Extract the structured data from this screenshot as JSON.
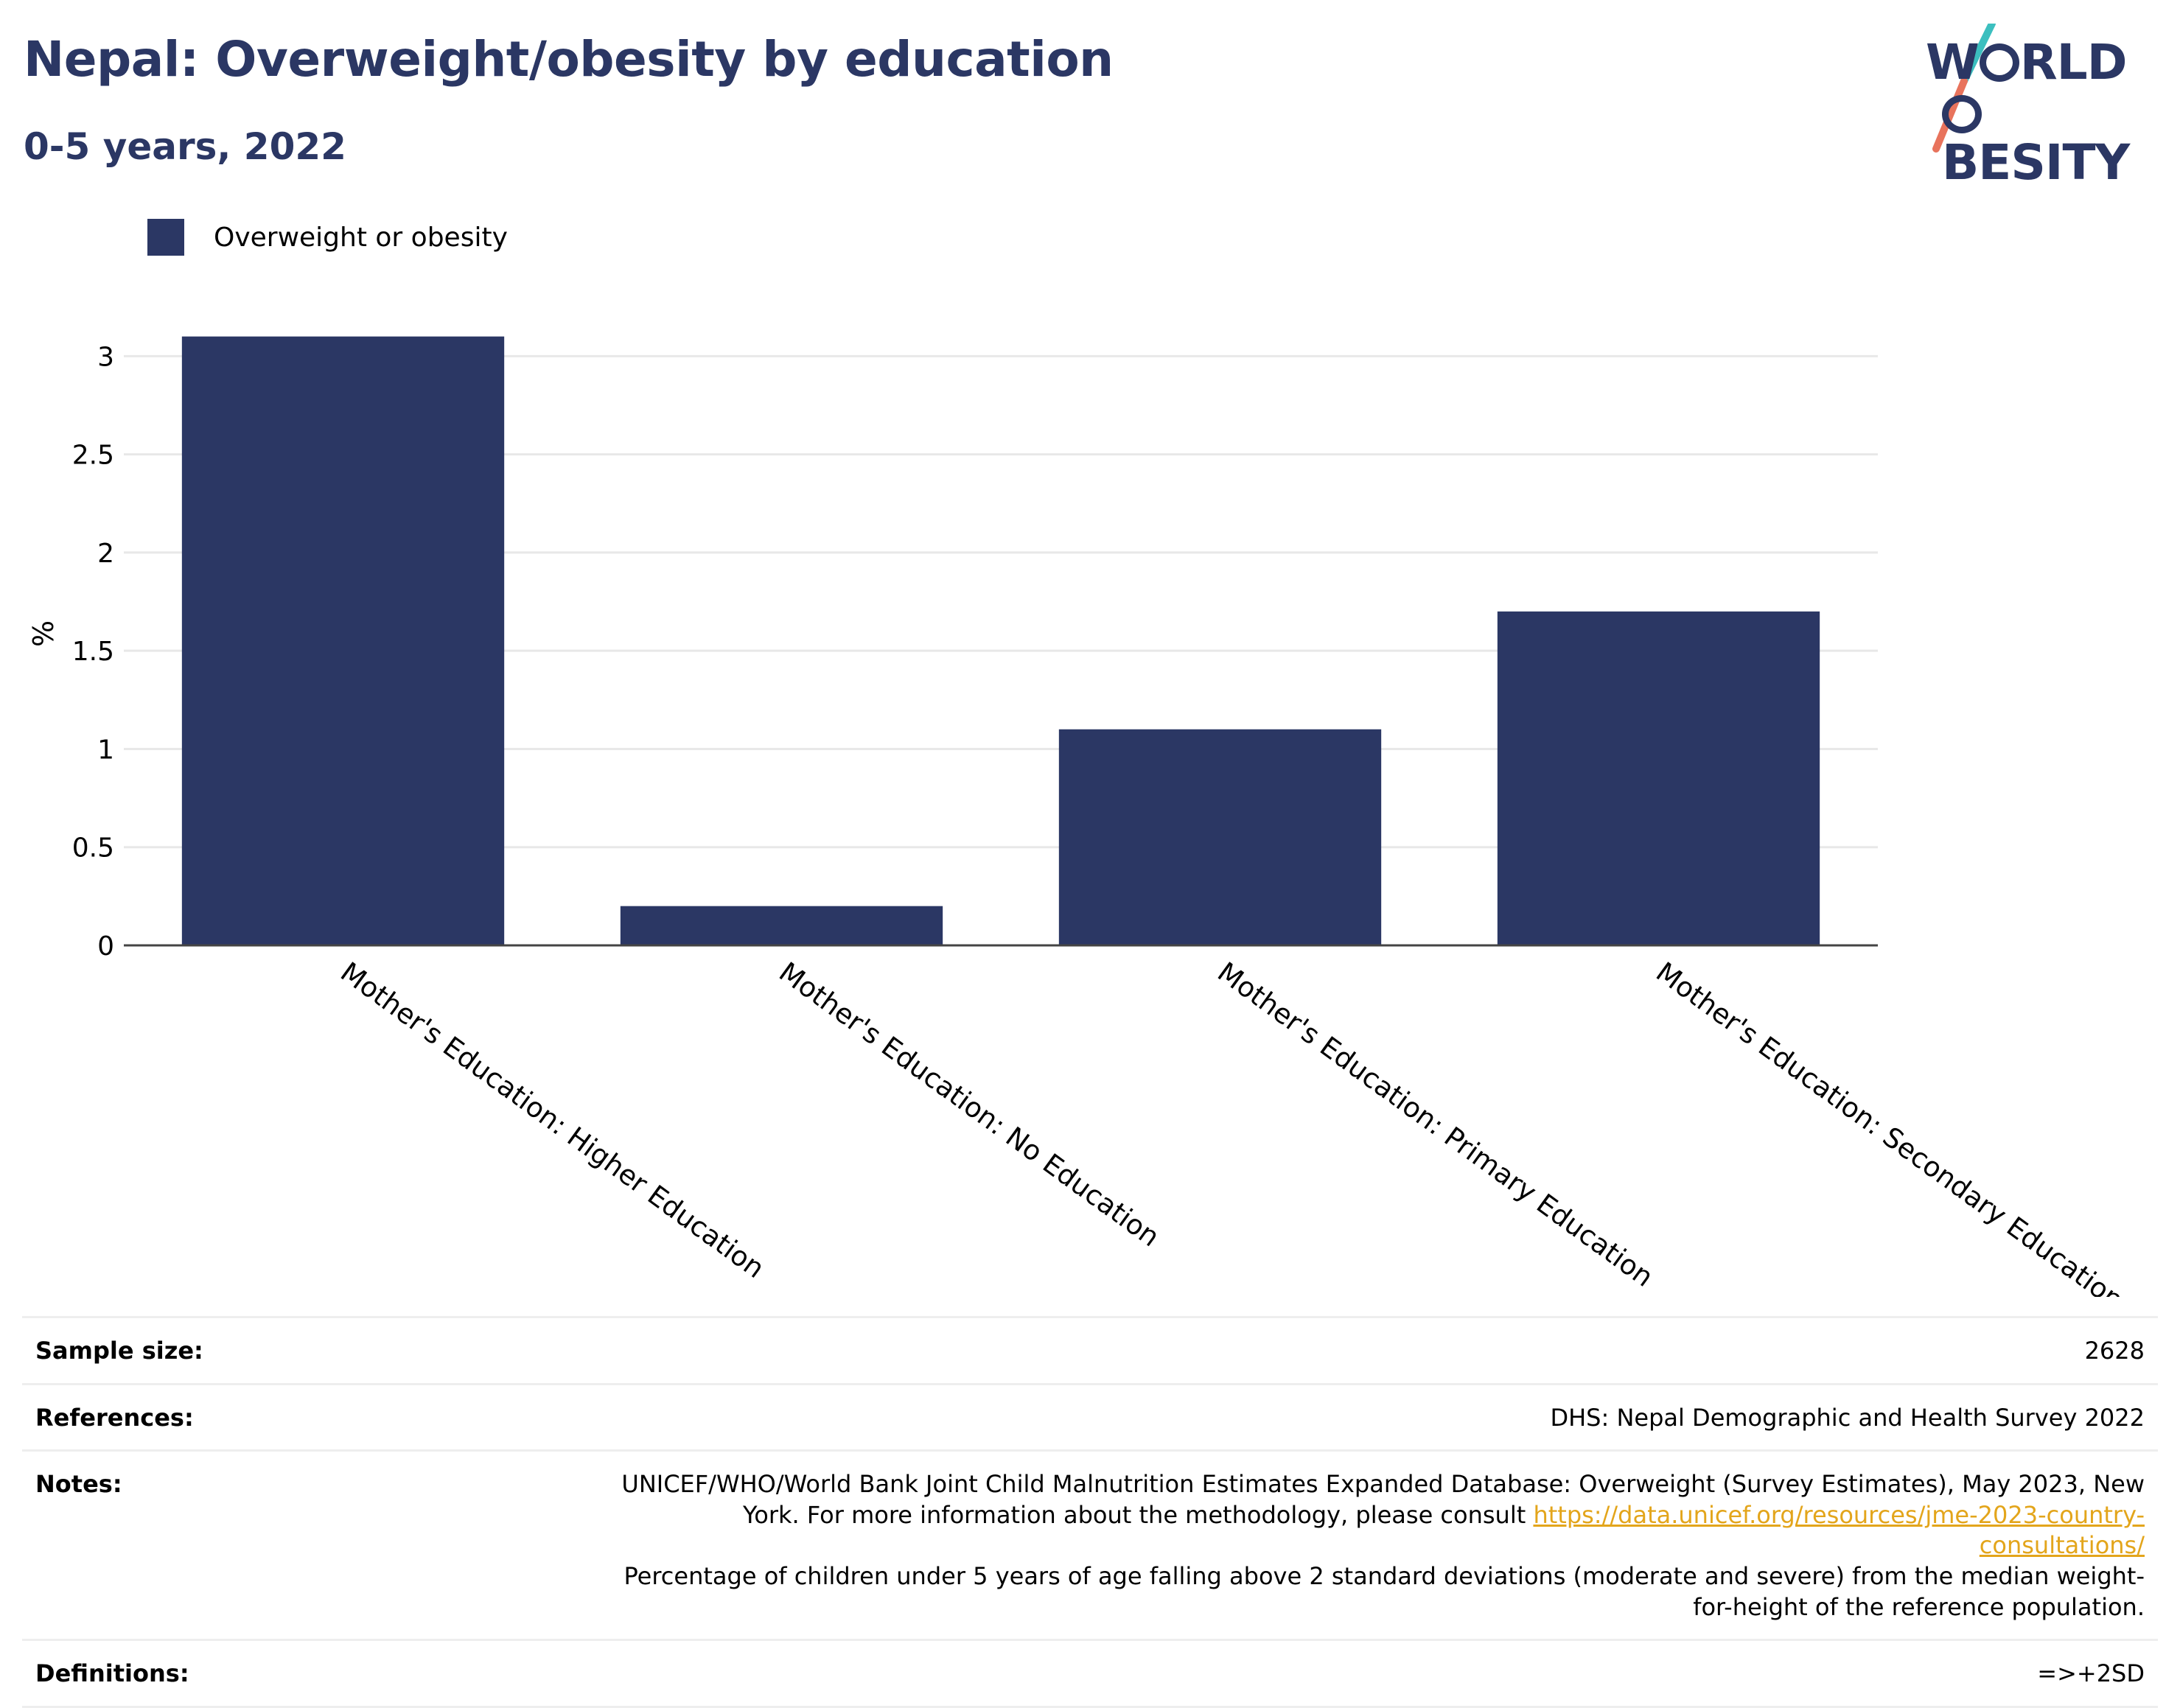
{
  "header": {
    "title": "Nepal: Overweight/obesity by education",
    "subtitle": "0-5 years, 2022"
  },
  "logo": {
    "line1": "W",
    "line1_rest": "RLD",
    "line2": "BESITY",
    "brand_color": "#2b3764",
    "accent_teal": "#3cbfbf",
    "accent_coral": "#e8735c"
  },
  "chart_data": {
    "type": "bar",
    "ylabel": "%",
    "xlabel": "",
    "categories": [
      "Mother's Education: Higher Education",
      "Mother's Education: No Education",
      "Mother's Education: Primary Education",
      "Mother's Education: Secondary Education"
    ],
    "series": [
      {
        "name": "Overweight or obesity",
        "values": [
          3.1,
          0.2,
          1.1,
          1.7
        ],
        "color": "#2b3764"
      }
    ],
    "ylim": [
      0,
      3.2
    ],
    "yticks": [
      0,
      0.5,
      1,
      1.5,
      2,
      2.5,
      3
    ],
    "ytick_labels": [
      "0",
      "0.5",
      "1",
      "1.5",
      "2",
      "2.5",
      "3"
    ],
    "grid": true,
    "legend_position": "top-left"
  },
  "info": {
    "sample_size": {
      "label": "Sample size:",
      "value": "2628"
    },
    "references": {
      "label": "References:",
      "value": "DHS: Nepal Demographic and Health Survey 2022"
    },
    "notes": {
      "label": "Notes:",
      "text1": "UNICEF/WHO/World Bank Joint Child Malnutrition Estimates Expanded Database: Overweight (Survey Estimates), May 2023, New York. For more information about the methodology, please consult ",
      "link": "https://data.unicef.org/resources/jme-2023-country-consultations/",
      "text2": "Percentage of children under 5 years of age falling above 2 standard deviations (moderate and severe) from the median weight-for-height of the reference population."
    },
    "definitions": {
      "label": "Definitions:",
      "value": "=>+2SD"
    }
  }
}
